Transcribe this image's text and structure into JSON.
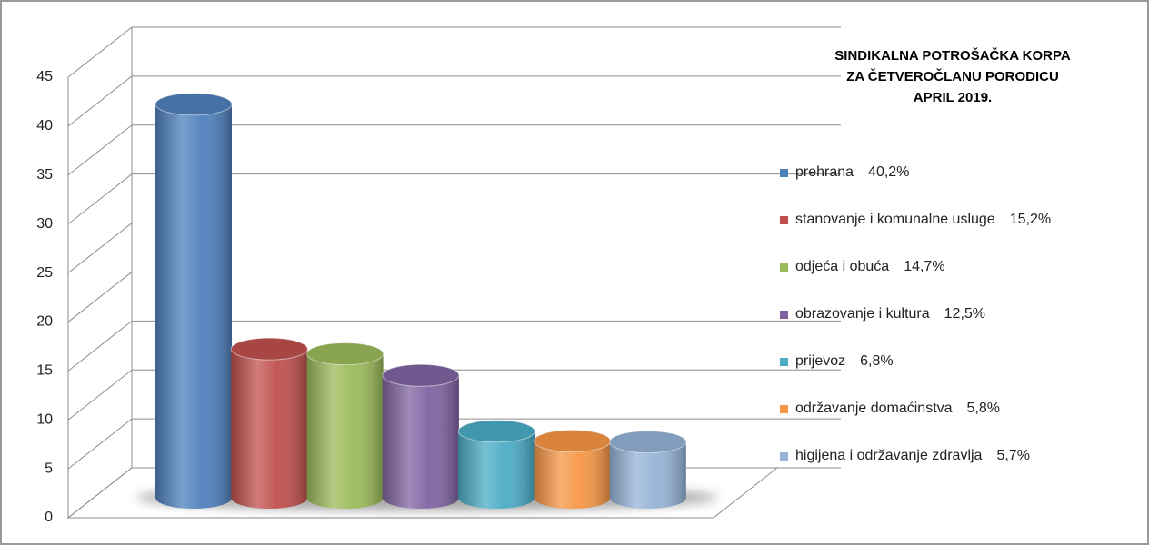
{
  "chart_data": {
    "type": "bar3d",
    "title": [
      "SINDIKALNA POTROŠAČKA KORPA",
      "ZA ČETVEROČLANU PORODICU",
      "APRIL 2019."
    ],
    "series": [
      {
        "name": "prehrana",
        "color": "#4f81bd",
        "values": [
          40.2
        ],
        "value_labels": [
          "40,2%"
        ]
      },
      {
        "name": "stanovanje i komunalne usluge",
        "color": "#c0504d",
        "values": [
          15.2
        ],
        "value_labels": [
          "15,2%"
        ]
      },
      {
        "name": "odjeća i obuća",
        "color": "#9bbb59",
        "values": [
          14.7
        ],
        "value_labels": [
          "14,7%"
        ]
      },
      {
        "name": "obrazovanje i kultura",
        "color": "#8064a2",
        "values": [
          12.5
        ],
        "value_labels": [
          "12,5%"
        ]
      },
      {
        "name": "prijevoz",
        "color": "#4bacc6",
        "values": [
          6.8
        ],
        "value_labels": [
          "6,8%"
        ]
      },
      {
        "name": "održavanje domaćinstva",
        "color": "#f79646",
        "values": [
          5.8
        ],
        "value_labels": [
          "5,8%"
        ]
      },
      {
        "name": "higijena i održavanje zdravlja",
        "color": "#95b3d7",
        "values": [
          5.7
        ],
        "value_labels": [
          "5,7%"
        ]
      }
    ],
    "ylim": [
      0,
      45
    ],
    "yticks": [
      0,
      5,
      10,
      15,
      20,
      25,
      30,
      35,
      40,
      45
    ],
    "grid": true,
    "legend": "right"
  }
}
